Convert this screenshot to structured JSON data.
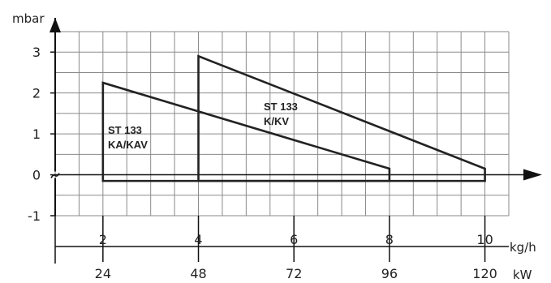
{
  "chart_data": {
    "type": "line",
    "ylabel": "mbar",
    "x_primary_label": "kg/h",
    "x_secondary_label": "kW",
    "y_ticks": [
      "3",
      "2",
      "1",
      "0",
      "-1"
    ],
    "x_primary_ticks": [
      "2",
      "4",
      "6",
      "8",
      "10"
    ],
    "x_secondary_ticks": [
      "24",
      "48",
      "72",
      "96",
      "120"
    ],
    "xlim": [
      1,
      10.5
    ],
    "ylim": [
      -1,
      3
    ],
    "grid": true,
    "series": [
      {
        "name_line1": "ST 133",
        "name_line2": "KA/KAV",
        "outline": [
          [
            2,
            2.25
          ],
          [
            8,
            0.15
          ],
          [
            8,
            -0.15
          ],
          [
            2,
            -0.15
          ]
        ]
      },
      {
        "name_line1": "ST 133",
        "name_line2": "K/KV",
        "outline": [
          [
            4,
            2.9
          ],
          [
            10,
            0.15
          ],
          [
            10,
            -0.15
          ],
          [
            4,
            -0.15
          ]
        ]
      }
    ]
  }
}
